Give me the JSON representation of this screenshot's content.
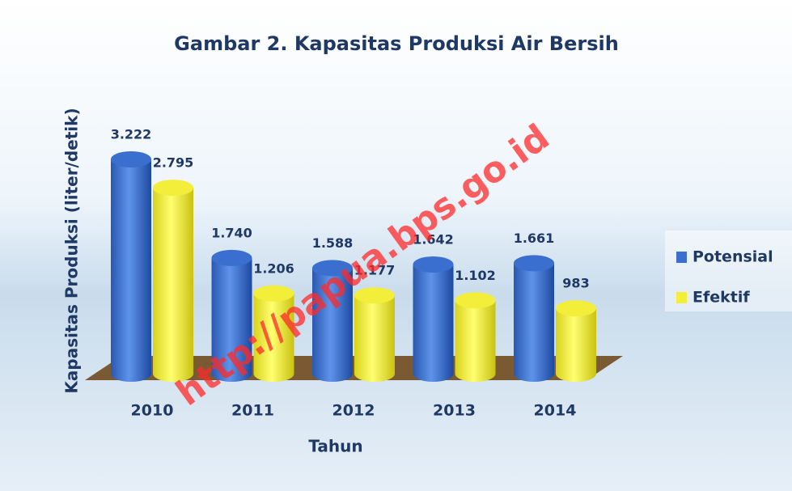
{
  "chart_data": {
    "type": "bar",
    "title": "Gambar 2. Kapasitas Produksi Air Bersih",
    "watermark": "http://papua.bps.go.id",
    "x_label": "Tahun",
    "y_label": "Kapasitas Produksi (liter/detik)",
    "categories": [
      "2010",
      "2011",
      "2012",
      "2013",
      "2014"
    ],
    "series": [
      {
        "name": "Potensial",
        "color": "#3a6fd0",
        "values": [
          3222,
          1740,
          1588,
          1642,
          1661
        ],
        "value_labels": [
          "3.222",
          "1.740",
          "1.588",
          "1.642",
          "1.661"
        ]
      },
      {
        "name": "Efektif",
        "color": "#f2ee3a",
        "values": [
          2795,
          1206,
          1177,
          1102,
          983
        ],
        "value_labels": [
          "2.795",
          "1.206",
          "1.177",
          "1.102",
          "983"
        ]
      }
    ],
    "legend": "right"
  }
}
